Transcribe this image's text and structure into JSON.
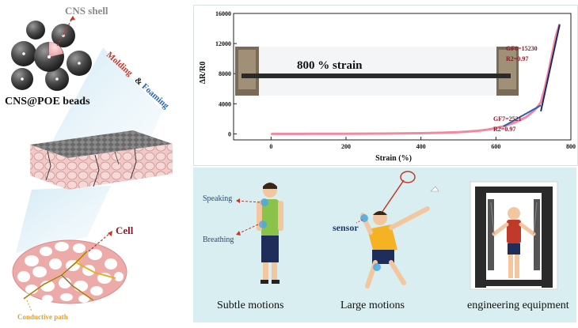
{
  "left": {
    "cns_shell_label": "CNS shell",
    "beads_label": "CNS@POE beads",
    "molding_word": "Molding",
    "amp_word": "&",
    "foaming_word": "Foaming",
    "cell_label": "Cell",
    "conductive_path_label": "Conductive path"
  },
  "colors": {
    "curve_pink": "#f08aa0",
    "fit_blue": "#2f5fb0",
    "fit_navy": "#1a2a6a",
    "label_red": "#8b1a2a",
    "molding_red": "#c0392b",
    "foaming_blue": "#2a64b0",
    "panel_bg": "#d9eef0",
    "path_yellow": "#e8b020"
  },
  "chart_data": {
    "type": "line",
    "ylabel": "ΔR/R0",
    "xlabel": "Strain (%)",
    "xlim": [
      -100,
      800
    ],
    "ylim": [
      -800,
      16000
    ],
    "x_ticks": [
      0,
      200,
      400,
      600,
      800
    ],
    "y_ticks": [
      0,
      4000,
      8000,
      12000,
      16000
    ],
    "inset_label": "800 % strain",
    "series": [
      {
        "x": [
          0,
          100,
          200,
          300,
          350,
          400,
          450,
          500,
          550,
          580,
          600,
          620,
          650,
          680,
          700,
          710,
          720,
          730,
          740,
          750,
          760,
          770
        ],
        "values": [
          0,
          8,
          20,
          45,
          65,
          95,
          140,
          230,
          400,
          580,
          780,
          1000,
          1500,
          2200,
          3000,
          3500,
          4200,
          6000,
          8200,
          10600,
          13000,
          14600
        ]
      }
    ],
    "fits": [
      {
        "label": "GF7=2521",
        "r2": "R2=0.97",
        "x": [
          620,
          720
        ],
        "values": [
          1000,
          3800
        ]
      },
      {
        "label": "GF8=15230",
        "r2": "R2=0.97",
        "x": [
          720,
          770
        ],
        "values": [
          3000,
          14500
        ]
      }
    ]
  },
  "apps": {
    "subtle": {
      "caption": "Subtle motions",
      "speaking": "Speaking",
      "breathing": "Breathing"
    },
    "large": {
      "caption": "Large motions",
      "sensor": "sensor"
    },
    "equipment": {
      "caption": "engineering equipment"
    }
  }
}
